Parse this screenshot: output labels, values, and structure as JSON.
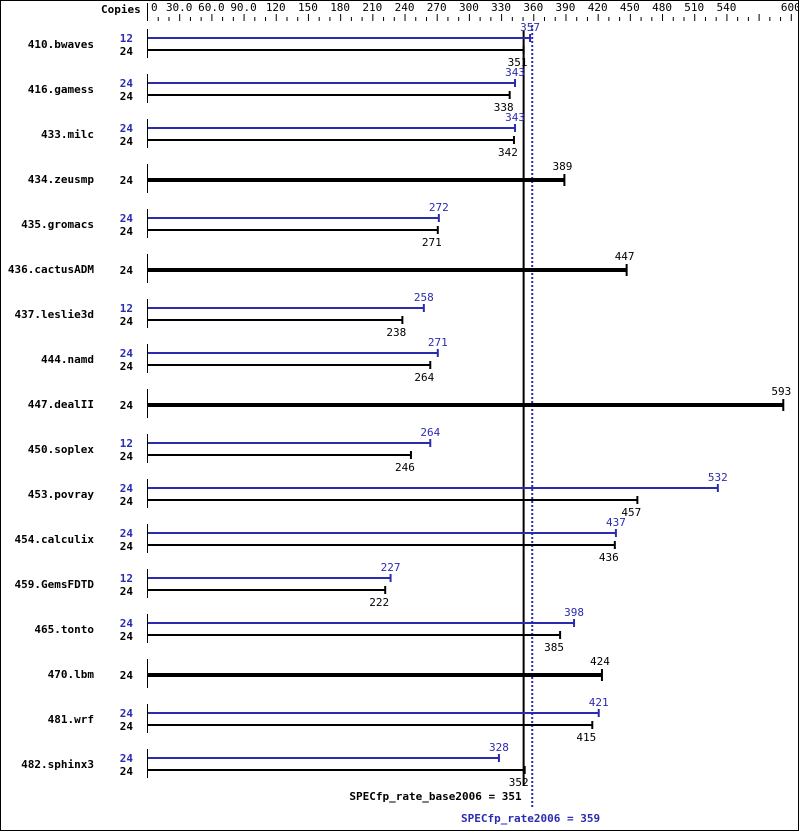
{
  "chart_data": {
    "type": "bar",
    "orientation": "horizontal",
    "axis_label": "Copies",
    "xlim": [
      0,
      600
    ],
    "ticks": [
      "0",
      "30.0",
      "60.0",
      "90.0",
      "120",
      "150",
      "180",
      "210",
      "240",
      "270",
      "300",
      "330",
      "360",
      "390",
      "420",
      "450",
      "480",
      "510",
      "540",
      "600"
    ],
    "colors": {
      "peak": "#2b2bb0",
      "base": "#000000"
    },
    "benchmarks": [
      {
        "name": "410.bwaves",
        "peak": {
          "copies": "12",
          "value": 357
        },
        "base": {
          "copies": "24",
          "value": 351
        }
      },
      {
        "name": "416.gamess",
        "peak": {
          "copies": "24",
          "value": 343
        },
        "base": {
          "copies": "24",
          "value": 338
        }
      },
      {
        "name": "433.milc",
        "peak": {
          "copies": "24",
          "value": 343
        },
        "base": {
          "copies": "24",
          "value": 342
        }
      },
      {
        "name": "434.zeusmp",
        "base": {
          "copies": "24",
          "value": 389
        }
      },
      {
        "name": "435.gromacs",
        "peak": {
          "copies": "24",
          "value": 272
        },
        "base": {
          "copies": "24",
          "value": 271
        }
      },
      {
        "name": "436.cactusADM",
        "base": {
          "copies": "24",
          "value": 447
        }
      },
      {
        "name": "437.leslie3d",
        "peak": {
          "copies": "12",
          "value": 258
        },
        "base": {
          "copies": "24",
          "value": 238
        }
      },
      {
        "name": "444.namd",
        "peak": {
          "copies": "24",
          "value": 271
        },
        "base": {
          "copies": "24",
          "value": 264
        }
      },
      {
        "name": "447.dealII",
        "base": {
          "copies": "24",
          "value": 593
        }
      },
      {
        "name": "450.soplex",
        "peak": {
          "copies": "12",
          "value": 264
        },
        "base": {
          "copies": "24",
          "value": 246
        }
      },
      {
        "name": "453.povray",
        "peak": {
          "copies": "24",
          "value": 532
        },
        "base": {
          "copies": "24",
          "value": 457
        }
      },
      {
        "name": "454.calculix",
        "peak": {
          "copies": "24",
          "value": 437
        },
        "base": {
          "copies": "24",
          "value": 436
        }
      },
      {
        "name": "459.GemsFDTD",
        "peak": {
          "copies": "12",
          "value": 227
        },
        "base": {
          "copies": "24",
          "value": 222
        }
      },
      {
        "name": "465.tonto",
        "peak": {
          "copies": "24",
          "value": 398
        },
        "base": {
          "copies": "24",
          "value": 385
        }
      },
      {
        "name": "470.lbm",
        "base": {
          "copies": "24",
          "value": 424
        }
      },
      {
        "name": "481.wrf",
        "peak": {
          "copies": "24",
          "value": 421
        },
        "base": {
          "copies": "24",
          "value": 415
        }
      },
      {
        "name": "482.sphinx3",
        "peak": {
          "copies": "24",
          "value": 328
        },
        "base": {
          "copies": "24",
          "value": 352
        }
      }
    ],
    "base_metric": {
      "label": "SPECfp_rate_base2006 = 351",
      "value": 351
    },
    "peak_metric": {
      "label": "SPECfp_rate2006 = 359",
      "value": 359
    }
  }
}
